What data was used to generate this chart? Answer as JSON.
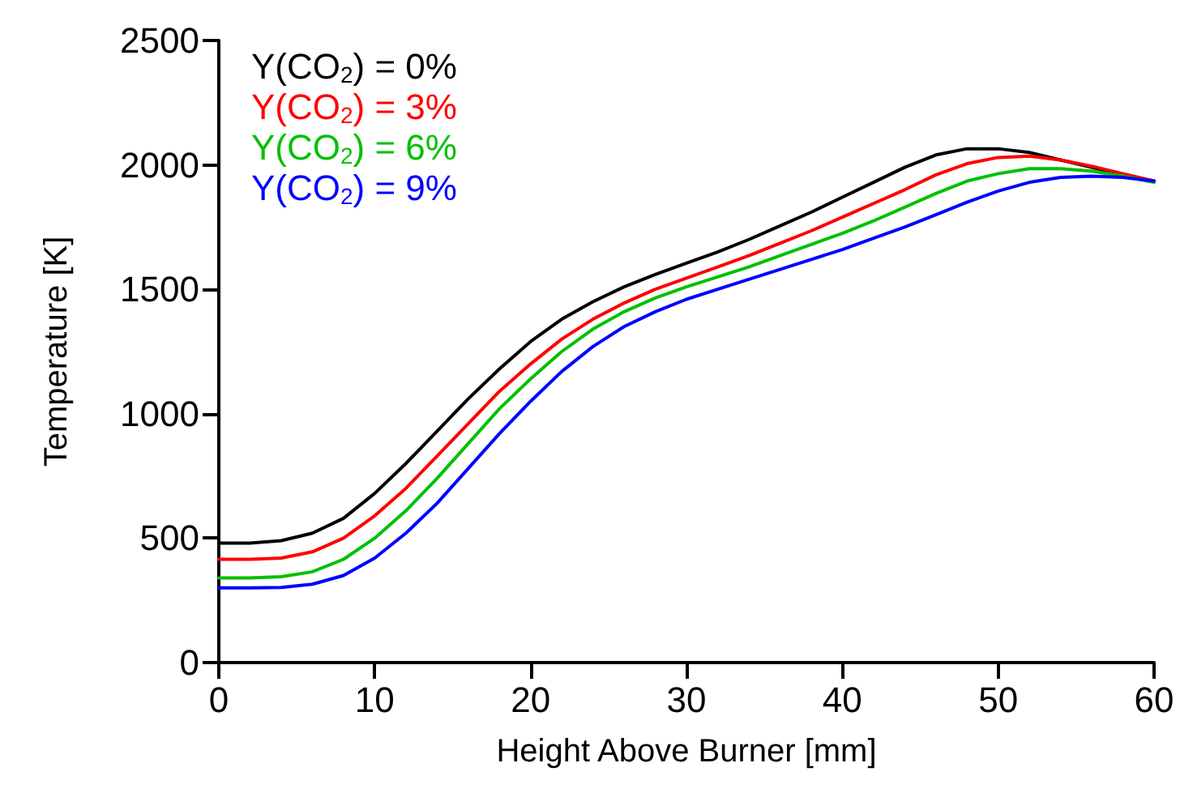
{
  "chart_data": {
    "type": "line",
    "xlabel": "Height Above Burner [mm]",
    "ylabel": "Temperature [K]",
    "x": [
      0,
      2,
      4,
      6,
      8,
      10,
      12,
      14,
      16,
      18,
      20,
      22,
      24,
      26,
      28,
      30,
      32,
      34,
      36,
      38,
      40,
      42,
      44,
      46,
      48,
      50,
      52,
      54,
      56,
      58,
      60
    ],
    "series": [
      {
        "name": "Y(CO$_{2}$) = 0%",
        "color": "#000000",
        "values": [
          480,
          480,
          490,
          520,
          580,
          680,
          800,
          930,
          1060,
          1180,
          1290,
          1380,
          1450,
          1510,
          1560,
          1605,
          1650,
          1700,
          1755,
          1810,
          1870,
          1930,
          1990,
          2040,
          2065,
          2065,
          2050,
          2020,
          1990,
          1960,
          1935
        ]
      },
      {
        "name": "Y(CO$_{2}$) = 3%",
        "color": "#ff0000",
        "values": [
          415,
          415,
          420,
          445,
          500,
          590,
          700,
          830,
          960,
          1090,
          1200,
          1300,
          1380,
          1445,
          1500,
          1545,
          1590,
          1635,
          1685,
          1735,
          1790,
          1845,
          1900,
          1960,
          2005,
          2030,
          2035,
          2020,
          1995,
          1965,
          1935
        ]
      },
      {
        "name": "Y(CO$_{2}$) = 6%",
        "color": "#00c000",
        "values": [
          340,
          340,
          345,
          365,
          415,
          500,
          610,
          740,
          880,
          1020,
          1140,
          1250,
          1340,
          1410,
          1465,
          1510,
          1550,
          1590,
          1635,
          1680,
          1725,
          1775,
          1830,
          1885,
          1935,
          1965,
          1985,
          1985,
          1975,
          1955,
          1930
        ]
      },
      {
        "name": "Y(CO$_{2}$) = 9%",
        "color": "#0000ff",
        "values": [
          300,
          300,
          302,
          315,
          350,
          420,
          520,
          640,
          780,
          920,
          1050,
          1170,
          1270,
          1350,
          1410,
          1460,
          1500,
          1540,
          1580,
          1620,
          1660,
          1705,
          1750,
          1800,
          1850,
          1895,
          1930,
          1950,
          1955,
          1950,
          1935
        ]
      }
    ],
    "xlim": [
      0,
      60
    ],
    "xticks": [
      0,
      10,
      20,
      30,
      40,
      50,
      60
    ],
    "ylim": [
      0,
      2500
    ],
    "yticks": [
      0,
      500,
      1000,
      1500,
      2000,
      2500
    ],
    "legend": "top left",
    "grid": false,
    "marker": "none",
    "line_style": "solid"
  }
}
